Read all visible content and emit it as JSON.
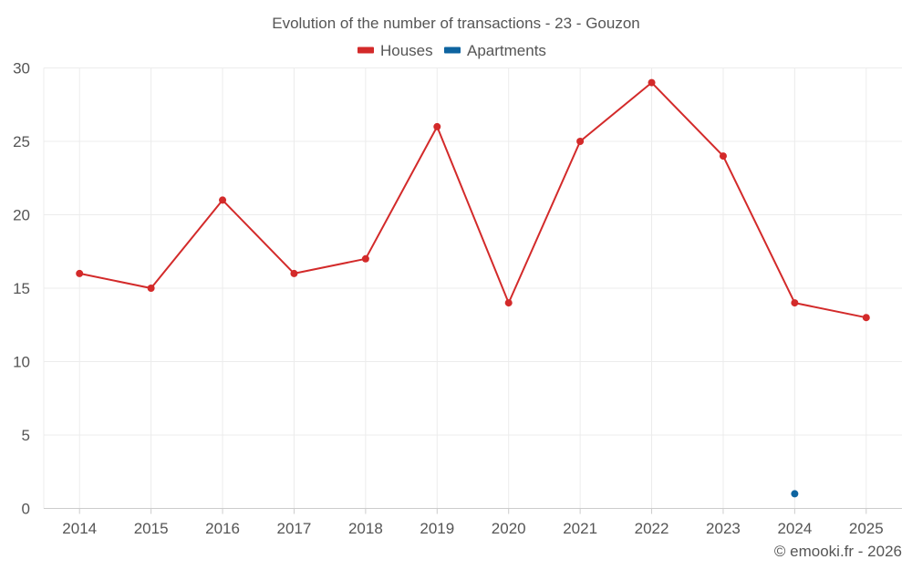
{
  "chart_data": {
    "type": "line",
    "title": "Evolution of the number of transactions - 23 - Gouzon",
    "categories": [
      "2014",
      "2015",
      "2016",
      "2017",
      "2018",
      "2019",
      "2020",
      "2021",
      "2022",
      "2023",
      "2024",
      "2025"
    ],
    "series": [
      {
        "name": "Houses",
        "color": "#d32a2a",
        "values": [
          16,
          15,
          21,
          16,
          17,
          26,
          14,
          25,
          29,
          24,
          14,
          13
        ]
      },
      {
        "name": "Apartments",
        "color": "#0e64a0",
        "values": [
          null,
          null,
          null,
          null,
          null,
          null,
          null,
          null,
          null,
          null,
          1,
          null
        ]
      }
    ],
    "ylim": [
      0,
      30
    ],
    "yticks": [
      0,
      5,
      10,
      15,
      20,
      25,
      30
    ],
    "xlabel": "",
    "ylabel": "",
    "grid": true,
    "legend_position": "top-center"
  },
  "credit": "© emooki.fr - 2026"
}
